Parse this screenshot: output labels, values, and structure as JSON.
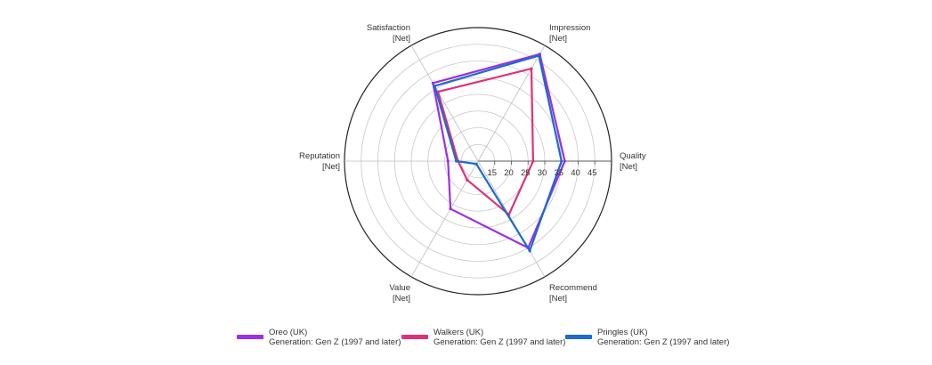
{
  "chart_data": {
    "type": "radar",
    "axes": [
      {
        "name": "Quality",
        "sub": "[Net]"
      },
      {
        "name": "Impression",
        "sub": "[Net]"
      },
      {
        "name": "Satisfaction",
        "sub": "[Net]"
      },
      {
        "name": "Reputation",
        "sub": "[Net]"
      },
      {
        "name": "Value",
        "sub": "[Net]"
      },
      {
        "name": "Recommend",
        "sub": "[Net]"
      }
    ],
    "rmin": 10,
    "rmax": 50,
    "tick_labels": [
      "15",
      "20",
      "25",
      "30",
      "35",
      "40",
      "45"
    ],
    "grid": true,
    "legend_position": "bottom",
    "series": [
      {
        "name": "Oreo (UK)",
        "subtitle": "Generation: Gen Z (1997 and later)",
        "color": "#9b30e6",
        "values": [
          36,
          47,
          37,
          19,
          26.5,
          40
        ]
      },
      {
        "name": "Walkers (UK)",
        "subtitle": "Generation: Gen Z (1997 and later)",
        "color": "#e0307a",
        "values": [
          26.5,
          42,
          34,
          16,
          16.5,
          28.5
        ]
      },
      {
        "name": "Pringles (UK)",
        "subtitle": "Generation: Gen Z (1997 and later)",
        "color": "#1c6cc8",
        "values": [
          35,
          46.5,
          36,
          16.5,
          11,
          41
        ]
      }
    ]
  }
}
